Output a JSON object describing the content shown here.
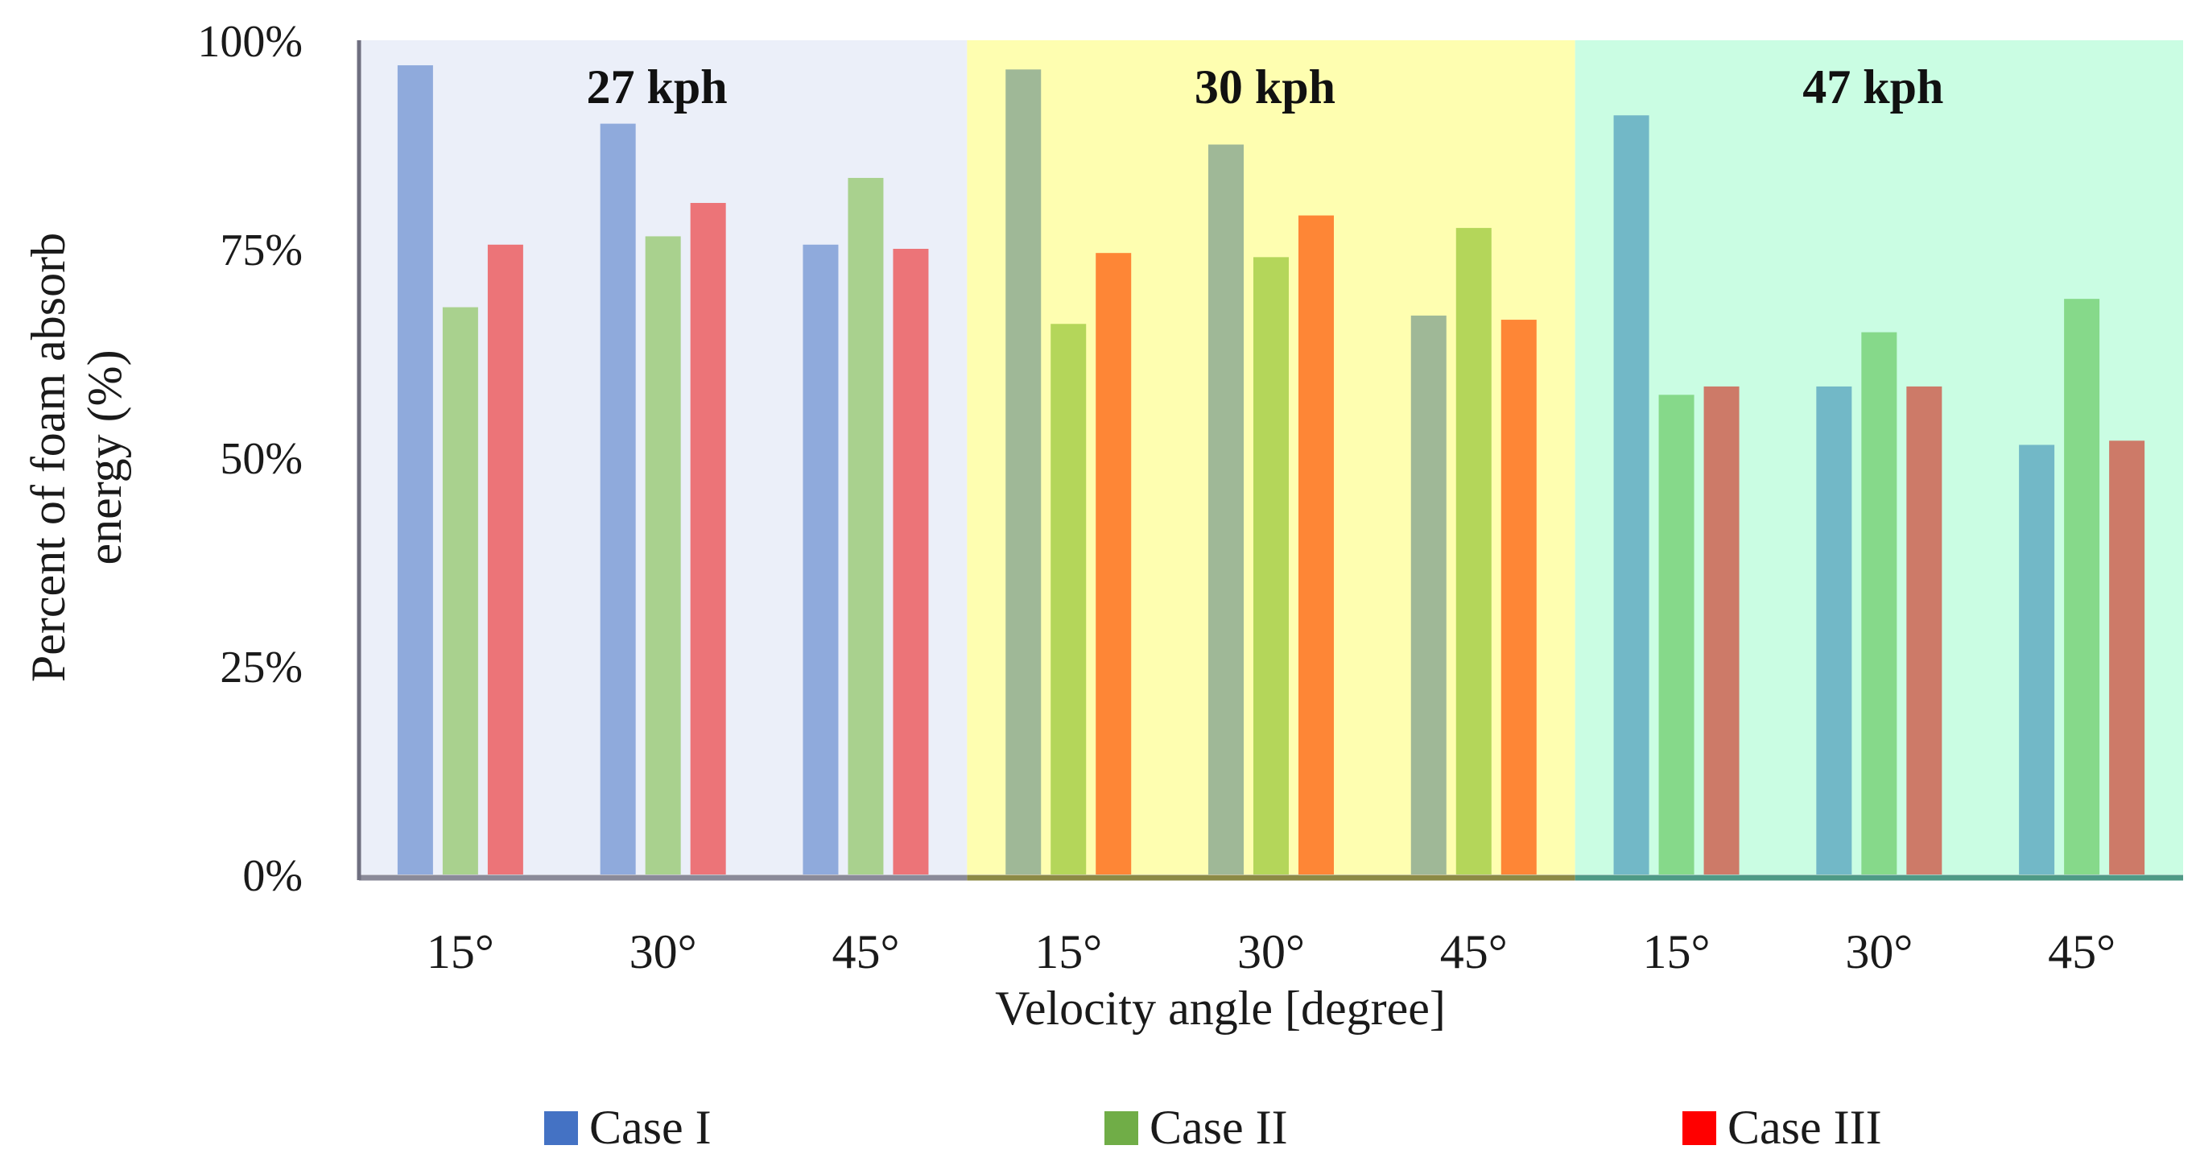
{
  "chart_data": {
    "type": "bar",
    "xlabel": "Velocity angle [degree]",
    "ylabel_lines": [
      "Percent of foam absorb",
      "energy (%)"
    ],
    "ylim": [
      0,
      100
    ],
    "yticks": [
      "0%",
      "25%",
      "50%",
      "75%",
      "100%"
    ],
    "ytick_values": [
      0,
      25,
      50,
      75,
      100
    ],
    "groups": [
      {
        "label": "27 kph",
        "background": "#ebeff9",
        "axis_color": "#8a8a99",
        "categories": [
          "15°",
          "30°",
          "45°"
        ],
        "colors": [
          "#8faadc",
          "#a9d18e",
          "#ec7478"
        ],
        "series": [
          {
            "name": "Case I",
            "values": [
              97,
              90,
              75.5
            ]
          },
          {
            "name": "Case II",
            "values": [
              68,
              76.5,
              83.5
            ]
          },
          {
            "name": "Case III",
            "values": [
              75.5,
              80.5,
              75
            ]
          }
        ]
      },
      {
        "label": "30 kph",
        "background": "#fefeb0",
        "axis_color": "#8c8a45",
        "categories": [
          "15°",
          "30°",
          "45°"
        ],
        "colors": [
          "#9fb897",
          "#b4d65a",
          "#fe8636"
        ],
        "series": [
          {
            "name": "Case I",
            "values": [
              96.5,
              87.5,
              67
            ]
          },
          {
            "name": "Case II",
            "values": [
              66,
              74,
              77.5
            ]
          },
          {
            "name": "Case III",
            "values": [
              74.5,
              79,
              66.5
            ]
          }
        ]
      },
      {
        "label": "47 kph",
        "background": "#cafde3",
        "axis_color": "#4e9a86",
        "categories": [
          "15°",
          "30°",
          "45°"
        ],
        "colors": [
          "#72b8c7",
          "#86d98a",
          "#cd7a68"
        ],
        "series": [
          {
            "name": "Case I",
            "values": [
              91,
              58.5,
              51.5
            ]
          },
          {
            "name": "Case II",
            "values": [
              57.5,
              65,
              69
            ]
          },
          {
            "name": "Case III",
            "values": [
              58.5,
              58.5,
              52
            ]
          }
        ]
      }
    ],
    "legend": [
      {
        "name": "Case I",
        "color": "#4472c4"
      },
      {
        "name": "Case II",
        "color": "#70ad47"
      },
      {
        "name": "Case III",
        "color": "#ff0000"
      }
    ]
  }
}
